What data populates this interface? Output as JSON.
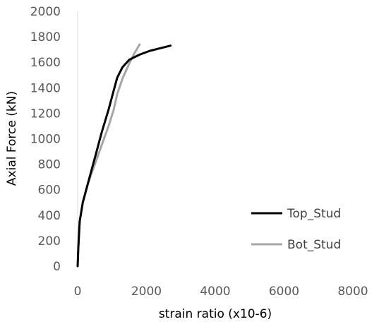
{
  "chart_data": {
    "type": "line",
    "title": "",
    "xlabel": "strain ratio (x10-6)",
    "ylabel": "Axial Force (kN)",
    "xlim": [
      0,
      8000
    ],
    "ylim": [
      0,
      2000
    ],
    "xticks": [
      0,
      2000,
      4000,
      6000,
      8000
    ],
    "yticks": [
      0,
      200,
      400,
      600,
      800,
      1000,
      1200,
      1400,
      1600,
      1800,
      2000
    ],
    "xtick_labels": [
      "0",
      "2000",
      "4000",
      "6000",
      "8000"
    ],
    "ytick_labels": [
      "0",
      "200",
      "400",
      "600",
      "800",
      "1000",
      "1200",
      "1400",
      "1600",
      "1800",
      "2000"
    ],
    "grid": false,
    "legend_position": "right",
    "series": [
      {
        "name": "Top_Stud",
        "color": "#000000",
        "x": [
          0,
          20,
          60,
          150,
          300,
          500,
          700,
          900,
          1050,
          1150,
          1300,
          1500,
          1800,
          2100,
          2400,
          2700
        ],
        "y": [
          0,
          150,
          350,
          500,
          650,
          850,
          1050,
          1230,
          1380,
          1480,
          1560,
          1620,
          1660,
          1690,
          1710,
          1730
        ]
      },
      {
        "name": "Bot_Stud",
        "color": "#a6a6a6",
        "x": [
          0,
          20,
          60,
          150,
          300,
          500,
          700,
          900,
          1050,
          1150,
          1300,
          1500,
          1650,
          1800
        ],
        "y": [
          0,
          150,
          350,
          500,
          650,
          800,
          950,
          1100,
          1230,
          1350,
          1470,
          1590,
          1670,
          1740
        ]
      }
    ]
  }
}
